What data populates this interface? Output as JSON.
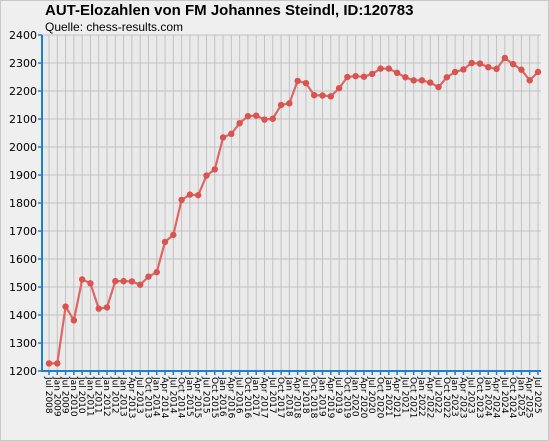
{
  "header": {
    "title": "AUT-Elozahlen von FM Johannes Steindl, ID:120783",
    "source": "Quelle: chess-results.com"
  },
  "colors": {
    "line": "#e06666",
    "point": "#d9534f",
    "axis": "#1f7fd6",
    "grid": "#c2c2c2",
    "plot_bg": "#eaeaea"
  },
  "chart_data": {
    "type": "line",
    "title": "AUT-Elozahlen von FM Johannes Steindl, ID:120783",
    "subtitle": "Quelle: chess-results.com",
    "xlabel": "",
    "ylabel": "",
    "ylim": [
      1200,
      2400
    ],
    "yticks": [
      1200,
      1300,
      1400,
      1500,
      1600,
      1700,
      1800,
      1900,
      2000,
      2100,
      2200,
      2300,
      2400
    ],
    "grid": true,
    "categories": [
      "Jul 2008",
      "Jan 2009",
      "Jul 2009",
      "Jan 2010",
      "Jul 2010",
      "Jan 2011",
      "Jul 2011",
      "Jan 2012",
      "Jul 2012",
      "Jan 2013",
      "Apr 2013",
      "Jul 2013",
      "Oct 2013",
      "Jan 2014",
      "Apr 2014",
      "Jul 2014",
      "Oct 2014",
      "Jan 2015",
      "Apr 2015",
      "Jul 2015",
      "Oct 2015",
      "Jan 2016",
      "Apr 2016",
      "Jul 2016",
      "Oct 2016",
      "Jan 2017",
      "Apr 2017",
      "Jul 2017",
      "Oct 2017",
      "Jan 2018",
      "Apr 2018",
      "Jul 2018",
      "Oct 2018",
      "Jan 2019",
      "Apr 2019",
      "Jul 2019",
      "Oct 2019",
      "Jan 2020",
      "Apr 2020",
      "Jul 2020",
      "Oct 2020",
      "Jan 2021",
      "Apr 2021",
      "Jul 2021",
      "Oct 2021",
      "Jan 2022",
      "Apr 2022",
      "Jul 2022",
      "Oct 2022",
      "Jan 2023",
      "Apr 2023",
      "Jul 2023",
      "Oct 2023",
      "Jan 2024",
      "Apr 2024",
      "Jul 2024",
      "Oct 2024",
      "Jan 2025",
      "Apr 2025",
      "Jul 2025"
    ],
    "tick_labels": [
      "Jul 2008",
      "Jan 2009",
      "Jul 2009",
      "Jan 2010",
      "Jul 2010",
      "Jan 2011",
      "Jul 2011",
      "Jan 2012",
      "Jul 2012",
      "Jan 2013",
      "Apr 2013",
      "Jul 2013",
      "Oct 2013",
      "Jan 2014",
      "Apr 2014",
      "Jul 2014",
      "Oct 2014",
      "Jan 2015",
      "Apr 2015",
      "Jul 2015",
      "Oct 2015",
      "Jan 2016",
      "Apr 2016",
      "Jul 2016",
      "Oct 2016",
      "Jan 2017",
      "Apr 2017",
      "Jul 2017",
      "Oct 2017",
      "Jan 2018",
      "Apr 2018",
      "Jul 2018",
      "Oct 2018",
      "Jan 2019",
      "Apr 2019",
      "Jul 2019",
      "Oct 2019",
      "Jan 2020",
      "Apr 2020",
      "Jul 2020",
      "Oct 2020",
      "Jan 2021",
      "Apr 2021",
      "Jul 2021",
      "Oct 2021",
      "Jan 2022",
      "Apr 2022",
      "Jul 2022",
      "Oct 2022",
      "Jan 2023",
      "Apr 2023",
      "Jul 2023",
      "Oct 2023",
      "Jan 2024",
      "Apr 2024",
      "Jul 2024",
      "Oct 2024",
      "Jan 2025",
      "Apr 2025",
      "Jul 2025"
    ],
    "values": [
      1227,
      1227,
      1430,
      1381,
      1527,
      1513,
      1423,
      1427,
      1521,
      1521,
      1520,
      1508,
      1537,
      1553,
      1661,
      1686,
      1811,
      1830,
      1828,
      1898,
      1920,
      2034,
      2047,
      2085,
      2110,
      2112,
      2098,
      2101,
      2150,
      2156,
      2236,
      2228,
      2185,
      2184,
      2181,
      2210,
      2250,
      2253,
      2251,
      2261,
      2280,
      2280,
      2265,
      2249,
      2238,
      2238,
      2230,
      2214,
      2249,
      2268,
      2277,
      2300,
      2298,
      2285,
      2279,
      2318,
      2296,
      2276,
      2238,
      2268
    ]
  }
}
